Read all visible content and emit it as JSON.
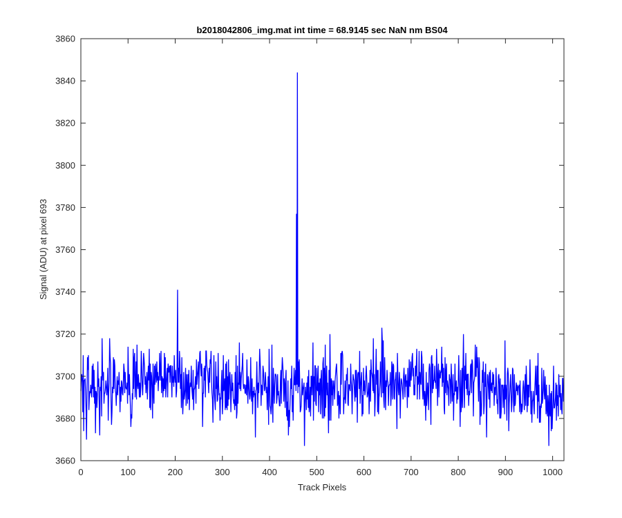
{
  "chart_data": {
    "type": "line",
    "title": "b2018042806_img.mat int time = 68.9145 sec  NaN nm BS04",
    "xlabel": "Track Pixels",
    "ylabel": "Signal (ADU) at pixel 693",
    "xlim": [
      0,
      1024
    ],
    "ylim": [
      3660,
      3860
    ],
    "xticks": [
      0,
      100,
      200,
      300,
      400,
      500,
      600,
      700,
      800,
      900,
      1000
    ],
    "yticks": [
      3660,
      3680,
      3700,
      3720,
      3740,
      3760,
      3780,
      3800,
      3820,
      3840,
      3860
    ],
    "grid": false,
    "line_color": "#0000ff",
    "noise": {
      "n_points": 1024,
      "base_level": 3695,
      "amplitude": 9,
      "max": 3731,
      "min": 3667
    },
    "spikes": [
      {
        "x": 205,
        "y": 3741
      },
      {
        "x": 457,
        "y": 3777
      },
      {
        "x": 459,
        "y": 3844
      }
    ]
  }
}
